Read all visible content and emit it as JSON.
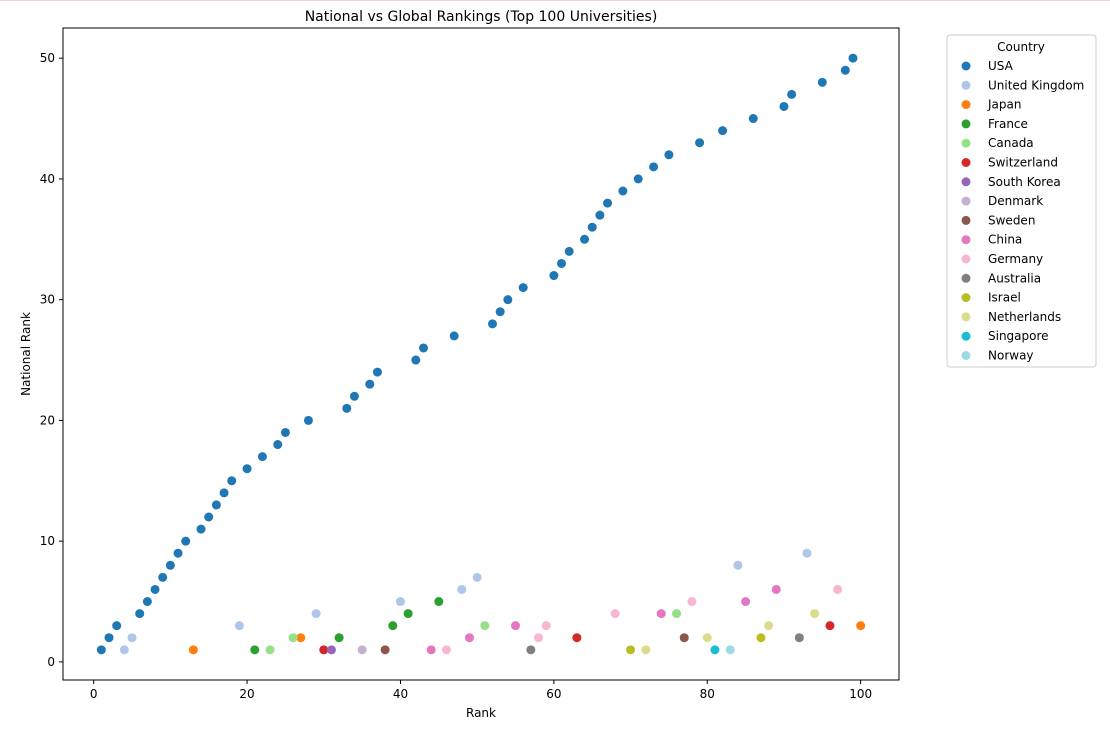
{
  "chart_data": {
    "type": "scatter",
    "title": "National vs Global Rankings (Top 100 Universities)",
    "xlabel": "Rank",
    "ylabel": "National Rank",
    "xlim": [
      -4,
      105
    ],
    "ylim": [
      -1.5,
      52.5
    ],
    "xticks": [
      0,
      20,
      40,
      60,
      80,
      100
    ],
    "yticks": [
      0,
      10,
      20,
      30,
      40,
      50
    ],
    "grid": false,
    "legend": {
      "title": "Country",
      "placement": "outside-right"
    },
    "series": [
      {
        "name": "USA",
        "color": "#1f77b4",
        "points": [
          [
            1,
            1
          ],
          [
            2,
            2
          ],
          [
            3,
            3
          ],
          [
            6,
            4
          ],
          [
            7,
            5
          ],
          [
            8,
            6
          ],
          [
            9,
            7
          ],
          [
            10,
            8
          ],
          [
            11,
            9
          ],
          [
            12,
            10
          ],
          [
            14,
            11
          ],
          [
            15,
            12
          ],
          [
            16,
            13
          ],
          [
            17,
            14
          ],
          [
            18,
            15
          ],
          [
            20,
            16
          ],
          [
            22,
            17
          ],
          [
            24,
            18
          ],
          [
            25,
            19
          ],
          [
            28,
            20
          ],
          [
            33,
            21
          ],
          [
            34,
            22
          ],
          [
            36,
            23
          ],
          [
            37,
            24
          ],
          [
            42,
            25
          ],
          [
            43,
            26
          ],
          [
            47,
            27
          ],
          [
            52,
            28
          ],
          [
            53,
            29
          ],
          [
            54,
            30
          ],
          [
            56,
            31
          ],
          [
            60,
            32
          ],
          [
            61,
            33
          ],
          [
            62,
            34
          ],
          [
            64,
            35
          ],
          [
            65,
            36
          ],
          [
            66,
            37
          ],
          [
            67,
            38
          ],
          [
            69,
            39
          ],
          [
            71,
            40
          ],
          [
            73,
            41
          ],
          [
            75,
            42
          ],
          [
            79,
            43
          ],
          [
            82,
            44
          ],
          [
            86,
            45
          ],
          [
            90,
            46
          ],
          [
            91,
            47
          ],
          [
            95,
            48
          ],
          [
            98,
            49
          ],
          [
            99,
            50
          ]
        ]
      },
      {
        "name": "United Kingdom",
        "color": "#aec7e8",
        "points": [
          [
            4,
            1
          ],
          [
            5,
            2
          ],
          [
            19,
            3
          ],
          [
            29,
            4
          ],
          [
            40,
            5
          ],
          [
            48,
            6
          ],
          [
            50,
            7
          ],
          [
            84,
            8
          ],
          [
            93,
            9
          ]
        ]
      },
      {
        "name": "Japan",
        "color": "#ff7f0e",
        "points": [
          [
            13,
            1
          ],
          [
            27,
            2
          ],
          [
            100,
            3
          ]
        ]
      },
      {
        "name": "France",
        "color": "#2ca02c",
        "points": [
          [
            21,
            1
          ],
          [
            32,
            2
          ],
          [
            39,
            3
          ],
          [
            41,
            4
          ],
          [
            45,
            5
          ]
        ]
      },
      {
        "name": "Canada",
        "color": "#98df8a",
        "points": [
          [
            23,
            1
          ],
          [
            26,
            2
          ],
          [
            51,
            3
          ],
          [
            76,
            4
          ]
        ]
      },
      {
        "name": "Switzerland",
        "color": "#d62728",
        "points": [
          [
            30,
            1
          ],
          [
            63,
            2
          ],
          [
            96,
            3
          ]
        ]
      },
      {
        "name": "South Korea",
        "color": "#9467bd",
        "points": [
          [
            31,
            1
          ]
        ]
      },
      {
        "name": "Denmark",
        "color": "#c5b0d5",
        "points": [
          [
            35,
            1
          ]
        ]
      },
      {
        "name": "Sweden",
        "color": "#8c564b",
        "points": [
          [
            38,
            1
          ],
          [
            77,
            2
          ]
        ]
      },
      {
        "name": "China",
        "color": "#e377c2",
        "points": [
          [
            44,
            1
          ],
          [
            49,
            2
          ],
          [
            55,
            3
          ],
          [
            74,
            4
          ],
          [
            85,
            5
          ],
          [
            89,
            6
          ]
        ]
      },
      {
        "name": "Germany",
        "color": "#f7b6d2",
        "points": [
          [
            46,
            1
          ],
          [
            58,
            2
          ],
          [
            59,
            3
          ],
          [
            68,
            4
          ],
          [
            78,
            5
          ],
          [
            97,
            6
          ]
        ]
      },
      {
        "name": "Australia",
        "color": "#7f7f7f",
        "points": [
          [
            57,
            1
          ],
          [
            92,
            2
          ]
        ]
      },
      {
        "name": "Israel",
        "color": "#bcbd22",
        "points": [
          [
            70,
            1
          ],
          [
            87,
            2
          ]
        ]
      },
      {
        "name": "Netherlands",
        "color": "#dbdb8d",
        "points": [
          [
            72,
            1
          ],
          [
            80,
            2
          ],
          [
            88,
            3
          ],
          [
            94,
            4
          ]
        ]
      },
      {
        "name": "Singapore",
        "color": "#17becf",
        "points": [
          [
            81,
            1
          ]
        ]
      },
      {
        "name": "Norway",
        "color": "#9edae5",
        "points": [
          [
            83,
            1
          ]
        ]
      }
    ]
  }
}
